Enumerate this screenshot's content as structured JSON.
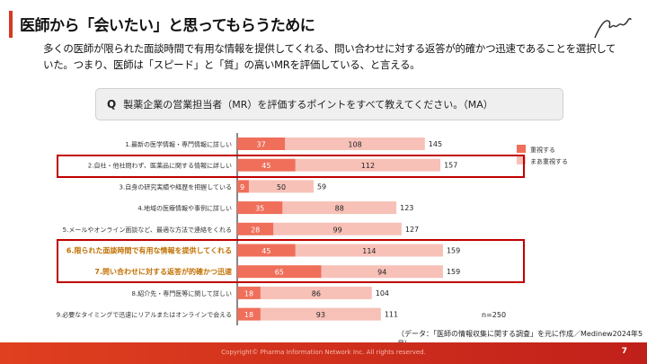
{
  "header": {
    "title": "医師から「会いたい」と思ってもらうために",
    "description": "多くの医師が限られた面談時間で有用な情報を提供してくれる、問い合わせに対する返答が的確かつ迅速であることを選択していた。つまり、医師は「スピード」と「質」の高いMRを評価している、と言える。"
  },
  "question": {
    "prefix": "Q",
    "text": "製薬企業の営業担当者（MR）を評価するポイントをすべて教えてください。（MA）"
  },
  "chart_data": {
    "type": "bar",
    "orientation": "horizontal",
    "stacked": true,
    "categories": [
      "1.最新の医学情報・専門情報に詳しい",
      "2.自社・他社問わず、医薬品に関する情報に詳しい",
      "3.自身の研究実績や経歴を把握している",
      "4.地域の医療情報や事例に詳しい",
      "5.メールやオンライン面談など、最適な方法で連絡をくれる",
      "6.限られた面談時間で有用な情報を提供してくれる",
      "7.問い合わせに対する返答が的確かつ迅速",
      "8.紹介先・専門医等に関して詳しい",
      "9.必要なタイミングで迅速にリアルまたはオンラインで会える"
    ],
    "series": [
      {
        "name": "重視する",
        "color": "#ef6f5a",
        "values": [
          37,
          45,
          9,
          35,
          28,
          45,
          65,
          18,
          18
        ]
      },
      {
        "name": "まあ重視する",
        "color": "#f7c1b8",
        "values": [
          108,
          112,
          50,
          88,
          99,
          114,
          94,
          86,
          93
        ]
      }
    ],
    "totals": [
      145,
      157,
      59,
      123,
      127,
      159,
      159,
      104,
      111
    ],
    "highlighted_categories": [
      2,
      6,
      7
    ],
    "highlight_label_color": "#c07000",
    "legend_position": "right",
    "grid": false,
    "n_label": "n=250"
  },
  "source": "（データ：「医師の情報収集に関する調査」を元に作成／Medinew2024年5月）",
  "footer": {
    "copyright": "Copyright© Pharma Information Network Inc. All rights reserved.",
    "page": "7"
  }
}
